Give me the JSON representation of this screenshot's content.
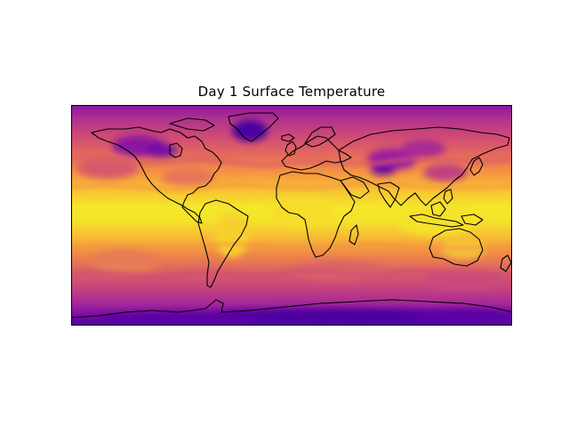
{
  "figure": {
    "title": "Day 1 Surface Temperature"
  },
  "map": {
    "projection": "plate-carree",
    "extent": {
      "lon": [
        -180,
        180
      ],
      "lat": [
        -90,
        90
      ]
    },
    "field": "surface temperature",
    "colormap": "plasma",
    "colormap_stops": [
      "#0d0887",
      "#5c01a6",
      "#9c179e",
      "#cc4778",
      "#ed7953",
      "#fdb42f",
      "#f0f921"
    ],
    "coastline_color": "#000000",
    "colorbar": false
  }
}
